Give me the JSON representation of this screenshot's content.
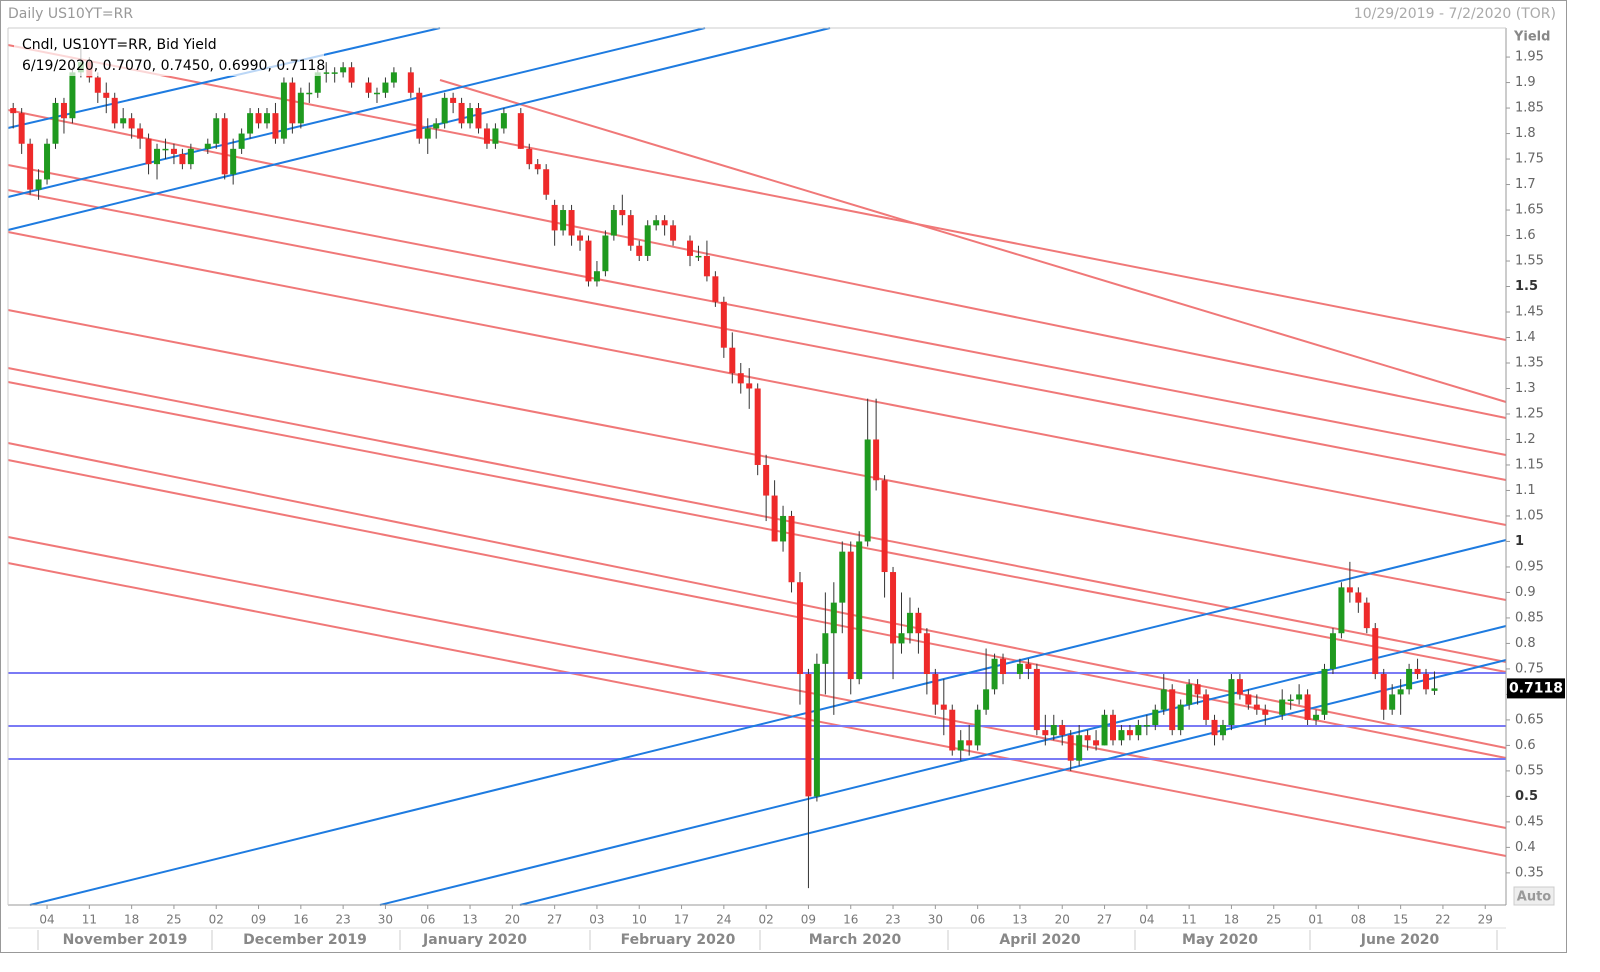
{
  "chart_data": {
    "type": "candlestick",
    "title": "Daily US10YT=RR",
    "date_range": "10/29/2019 - 7/2/2020 (TOR)",
    "legend": "Cndl, US10YT=RR, Bid Yield",
    "readout": "6/19/2020, 0.7070, 0.7450, 0.6990, 0.7118",
    "y_label": "Yield",
    "button": "Auto",
    "up_color": "#1f9a1f",
    "down_color": "#ee2a2a",
    "ylim": [
      0.287,
      2.007
    ],
    "yticks": [
      0.35,
      0.4,
      0.45,
      0.5,
      0.55,
      0.6,
      0.65,
      0.7,
      0.75,
      0.8,
      0.85,
      0.9,
      0.95,
      1,
      1.05,
      1.1,
      1.15,
      1.2,
      1.25,
      1.3,
      1.35,
      1.4,
      1.45,
      1.5,
      1.55,
      1.6,
      1.65,
      1.7,
      1.75,
      1.8,
      1.85,
      1.9,
      1.95
    ],
    "months": [
      "November 2019",
      "December 2019",
      "January 2020",
      "February 2020",
      "March 2020",
      "April 2020",
      "May 2020",
      "June 2020"
    ],
    "categories": [
      null,
      null,
      null,
      null,
      "04",
      null,
      null,
      null,
      null,
      "11",
      null,
      null,
      null,
      null,
      "18",
      null,
      null,
      null,
      null,
      "25",
      null,
      null,
      null,
      null,
      "02",
      null,
      null,
      null,
      null,
      "09",
      null,
      null,
      null,
      null,
      "16",
      null,
      null,
      null,
      null,
      "23",
      null,
      null,
      null,
      null,
      "30",
      null,
      null,
      null,
      null,
      "06",
      null,
      null,
      null,
      null,
      "13",
      null,
      null,
      null,
      null,
      "20",
      null,
      null,
      null,
      null,
      "27",
      null,
      null,
      null,
      null,
      "03",
      null,
      null,
      null,
      null,
      "10",
      null,
      null,
      null,
      null,
      "17",
      null,
      null,
      null,
      null,
      "24",
      null,
      null,
      null,
      null,
      "02",
      null,
      null,
      null,
      null,
      "09",
      null,
      null,
      null,
      null,
      "16",
      null,
      null,
      null,
      null,
      "23",
      null,
      null,
      null,
      null,
      "30",
      null,
      null,
      null,
      null,
      "06",
      null,
      null,
      null,
      null,
      "13",
      null,
      null,
      null,
      null,
      "20",
      null,
      null,
      null,
      null,
      "27",
      null,
      null,
      null,
      null,
      "04",
      null,
      null,
      null,
      null,
      "11",
      null,
      null,
      null,
      null,
      "18",
      null,
      null,
      null,
      null,
      "25",
      null,
      null,
      null,
      null,
      "01",
      null,
      null,
      null,
      null,
      "08",
      null,
      null,
      null,
      null,
      "15",
      null,
      null,
      null,
      null,
      "22",
      null,
      null,
      null,
      null,
      "29",
      null,
      null,
      null
    ],
    "candles": [
      [
        1.85,
        1.86,
        1.81,
        1.84
      ],
      [
        1.84,
        1.85,
        1.76,
        1.78
      ],
      [
        1.78,
        1.79,
        1.68,
        1.69
      ],
      [
        1.69,
        1.73,
        1.67,
        1.71
      ],
      [
        1.71,
        1.79,
        1.7,
        1.78
      ],
      [
        1.78,
        1.87,
        1.77,
        1.86
      ],
      [
        1.86,
        1.87,
        1.8,
        1.83
      ],
      [
        1.83,
        1.93,
        1.82,
        1.92
      ],
      [
        1.92,
        1.97,
        1.91,
        1.94
      ],
      [
        1.94,
        1.95,
        1.9,
        1.91
      ],
      [
        1.91,
        1.92,
        1.86,
        1.88
      ],
      [
        1.88,
        1.9,
        1.84,
        1.87
      ],
      [
        1.87,
        1.88,
        1.81,
        1.82
      ],
      [
        1.82,
        1.85,
        1.81,
        1.83
      ],
      [
        1.83,
        1.84,
        1.79,
        1.81
      ],
      [
        1.81,
        1.82,
        1.77,
        1.79
      ],
      [
        1.79,
        1.8,
        1.72,
        1.74
      ],
      [
        1.74,
        1.78,
        1.71,
        1.77
      ],
      [
        1.77,
        1.79,
        1.75,
        1.77
      ],
      [
        1.77,
        1.78,
        1.74,
        1.76
      ],
      [
        1.76,
        1.77,
        1.73,
        1.74
      ],
      [
        1.74,
        1.78,
        1.73,
        1.77
      ],
      null,
      [
        1.77,
        1.79,
        1.76,
        1.78
      ],
      [
        1.78,
        1.84,
        1.77,
        1.83
      ],
      [
        1.83,
        1.84,
        1.71,
        1.72
      ],
      [
        1.72,
        1.79,
        1.7,
        1.77
      ],
      [
        1.77,
        1.81,
        1.76,
        1.8
      ],
      [
        1.8,
        1.85,
        1.79,
        1.84
      ],
      [
        1.84,
        1.85,
        1.81,
        1.82
      ],
      [
        1.82,
        1.85,
        1.81,
        1.84
      ],
      [
        1.84,
        1.86,
        1.78,
        1.79
      ],
      [
        1.79,
        1.91,
        1.78,
        1.9
      ],
      [
        1.9,
        1.91,
        1.8,
        1.82
      ],
      [
        1.82,
        1.89,
        1.81,
        1.88
      ],
      [
        1.88,
        1.9,
        1.86,
        1.88
      ],
      [
        1.88,
        1.93,
        1.87,
        1.92
      ],
      [
        1.92,
        1.94,
        1.9,
        1.92
      ],
      [
        1.92,
        1.93,
        1.9,
        1.92
      ],
      [
        1.92,
        1.94,
        1.91,
        1.93
      ],
      [
        1.93,
        1.94,
        1.89,
        1.9
      ],
      null,
      [
        1.9,
        1.91,
        1.87,
        1.88
      ],
      [
        1.88,
        1.89,
        1.86,
        1.88
      ],
      [
        1.88,
        1.91,
        1.87,
        1.9
      ],
      [
        1.9,
        1.93,
        1.89,
        1.92
      ],
      null,
      [
        1.92,
        1.93,
        1.87,
        1.88
      ],
      [
        1.88,
        1.89,
        1.78,
        1.79
      ],
      [
        1.79,
        1.83,
        1.76,
        1.81
      ],
      [
        1.81,
        1.83,
        1.79,
        1.82
      ],
      [
        1.82,
        1.88,
        1.81,
        1.87
      ],
      [
        1.87,
        1.88,
        1.84,
        1.86
      ],
      [
        1.86,
        1.87,
        1.81,
        1.82
      ],
      [
        1.82,
        1.86,
        1.81,
        1.85
      ],
      [
        1.85,
        1.86,
        1.8,
        1.81
      ],
      [
        1.81,
        1.82,
        1.77,
        1.78
      ],
      [
        1.78,
        1.82,
        1.77,
        1.81
      ],
      [
        1.81,
        1.85,
        1.8,
        1.84
      ],
      null,
      [
        1.84,
        1.85,
        1.77,
        1.77
      ],
      [
        1.77,
        1.78,
        1.73,
        1.74
      ],
      [
        1.74,
        1.75,
        1.72,
        1.73
      ],
      [
        1.73,
        1.74,
        1.67,
        1.68
      ],
      [
        1.66,
        1.67,
        1.58,
        1.61
      ],
      [
        1.61,
        1.66,
        1.6,
        1.65
      ],
      [
        1.65,
        1.66,
        1.58,
        1.6
      ],
      [
        1.6,
        1.61,
        1.57,
        1.59
      ],
      [
        1.59,
        1.6,
        1.5,
        1.51
      ],
      [
        1.51,
        1.55,
        1.5,
        1.53
      ],
      [
        1.53,
        1.61,
        1.52,
        1.6
      ],
      [
        1.6,
        1.66,
        1.59,
        1.65
      ],
      [
        1.65,
        1.68,
        1.62,
        1.64
      ],
      [
        1.64,
        1.65,
        1.57,
        1.58
      ],
      [
        1.58,
        1.59,
        1.55,
        1.56
      ],
      [
        1.56,
        1.63,
        1.55,
        1.62
      ],
      [
        1.62,
        1.64,
        1.61,
        1.63
      ],
      [
        1.63,
        1.64,
        1.6,
        1.62
      ],
      [
        1.62,
        1.63,
        1.58,
        1.59
      ],
      null,
      [
        1.59,
        1.6,
        1.54,
        1.56
      ],
      [
        1.56,
        1.58,
        1.55,
        1.56
      ],
      [
        1.56,
        1.59,
        1.51,
        1.52
      ],
      [
        1.52,
        1.53,
        1.46,
        1.47
      ],
      [
        1.47,
        1.48,
        1.36,
        1.38
      ],
      [
        1.38,
        1.41,
        1.31,
        1.33
      ],
      [
        1.33,
        1.35,
        1.29,
        1.31
      ],
      [
        1.31,
        1.34,
        1.26,
        1.3
      ],
      [
        1.3,
        1.31,
        1.13,
        1.15
      ],
      [
        1.15,
        1.17,
        1.04,
        1.09
      ],
      [
        1.09,
        1.12,
        1.0,
        1.0
      ],
      [
        1.0,
        1.07,
        0.98,
        1.05
      ],
      [
        1.05,
        1.06,
        0.9,
        0.92
      ],
      [
        0.92,
        0.94,
        0.68,
        0.74
      ],
      [
        0.74,
        0.75,
        0.32,
        0.5
      ],
      [
        0.5,
        0.78,
        0.49,
        0.76
      ],
      [
        0.76,
        0.9,
        0.7,
        0.82
      ],
      [
        0.82,
        0.92,
        0.66,
        0.88
      ],
      [
        0.88,
        1.0,
        0.82,
        0.98
      ],
      [
        0.98,
        1.0,
        0.7,
        0.73
      ],
      [
        0.73,
        1.02,
        0.72,
        1.0
      ],
      [
        1.0,
        1.28,
        0.99,
        1.2
      ],
      [
        1.2,
        1.28,
        1.1,
        1.12
      ],
      [
        1.12,
        1.13,
        0.89,
        0.94
      ],
      [
        0.94,
        0.95,
        0.73,
        0.8
      ],
      [
        0.8,
        0.9,
        0.78,
        0.82
      ],
      [
        0.82,
        0.89,
        0.8,
        0.86
      ],
      [
        0.86,
        0.87,
        0.78,
        0.82
      ],
      [
        0.82,
        0.83,
        0.7,
        0.74
      ],
      [
        0.74,
        0.75,
        0.66,
        0.68
      ],
      [
        0.68,
        0.73,
        0.62,
        0.67
      ],
      [
        0.67,
        0.68,
        0.58,
        0.59
      ],
      [
        0.59,
        0.63,
        0.57,
        0.61
      ],
      [
        0.61,
        0.64,
        0.58,
        0.6
      ],
      [
        0.6,
        0.68,
        0.59,
        0.67
      ],
      [
        0.67,
        0.79,
        0.66,
        0.71
      ],
      [
        0.71,
        0.78,
        0.7,
        0.77
      ],
      [
        0.77,
        0.78,
        0.72,
        0.74
      ],
      null,
      [
        0.74,
        0.77,
        0.73,
        0.76
      ],
      [
        0.76,
        0.77,
        0.73,
        0.75
      ],
      [
        0.75,
        0.76,
        0.62,
        0.63
      ],
      [
        0.63,
        0.66,
        0.6,
        0.62
      ],
      [
        0.62,
        0.66,
        0.61,
        0.64
      ],
      [
        0.64,
        0.65,
        0.6,
        0.62
      ],
      [
        0.62,
        0.63,
        0.55,
        0.57
      ],
      [
        0.57,
        0.64,
        0.56,
        0.62
      ],
      [
        0.62,
        0.63,
        0.59,
        0.61
      ],
      [
        0.61,
        0.63,
        0.59,
        0.6
      ],
      [
        0.6,
        0.67,
        0.6,
        0.66
      ],
      [
        0.66,
        0.67,
        0.6,
        0.61
      ],
      [
        0.61,
        0.64,
        0.6,
        0.63
      ],
      [
        0.63,
        0.64,
        0.61,
        0.62
      ],
      [
        0.62,
        0.65,
        0.61,
        0.64
      ],
      [
        0.64,
        0.66,
        0.62,
        0.64
      ],
      [
        0.64,
        0.68,
        0.63,
        0.67
      ],
      [
        0.67,
        0.74,
        0.66,
        0.71
      ],
      [
        0.71,
        0.72,
        0.62,
        0.63
      ],
      [
        0.63,
        0.69,
        0.62,
        0.68
      ],
      [
        0.68,
        0.73,
        0.67,
        0.72
      ],
      [
        0.72,
        0.73,
        0.68,
        0.7
      ],
      [
        0.7,
        0.71,
        0.64,
        0.65
      ],
      [
        0.65,
        0.66,
        0.6,
        0.62
      ],
      [
        0.62,
        0.65,
        0.61,
        0.64
      ],
      [
        0.64,
        0.74,
        0.63,
        0.73
      ],
      [
        0.73,
        0.74,
        0.69,
        0.7
      ],
      [
        0.7,
        0.71,
        0.67,
        0.68
      ],
      [
        0.68,
        0.7,
        0.66,
        0.67
      ],
      [
        0.67,
        0.68,
        0.64,
        0.66
      ],
      null,
      [
        0.66,
        0.71,
        0.65,
        0.69
      ],
      [
        0.69,
        0.7,
        0.67,
        0.69
      ],
      [
        0.69,
        0.72,
        0.68,
        0.7
      ],
      [
        0.7,
        0.71,
        0.64,
        0.65
      ],
      [
        0.65,
        0.67,
        0.64,
        0.66
      ],
      [
        0.66,
        0.76,
        0.65,
        0.75
      ],
      [
        0.75,
        0.83,
        0.74,
        0.82
      ],
      [
        0.82,
        0.92,
        0.81,
        0.91
      ],
      [
        0.91,
        0.96,
        0.88,
        0.9
      ],
      [
        0.9,
        0.91,
        0.86,
        0.88
      ],
      [
        0.88,
        0.89,
        0.82,
        0.83
      ],
      [
        0.83,
        0.84,
        0.73,
        0.74
      ],
      [
        0.74,
        0.75,
        0.65,
        0.67
      ],
      [
        0.67,
        0.72,
        0.66,
        0.7
      ],
      [
        0.7,
        0.73,
        0.66,
        0.71
      ],
      [
        0.71,
        0.76,
        0.7,
        0.75
      ],
      [
        0.75,
        0.77,
        0.73,
        0.74
      ],
      [
        0.74,
        0.75,
        0.7,
        0.71
      ],
      [
        0.707,
        0.745,
        0.699,
        0.7118
      ],
      null,
      null,
      null,
      null,
      null,
      null,
      null,
      null,
      null
    ]
  }
}
